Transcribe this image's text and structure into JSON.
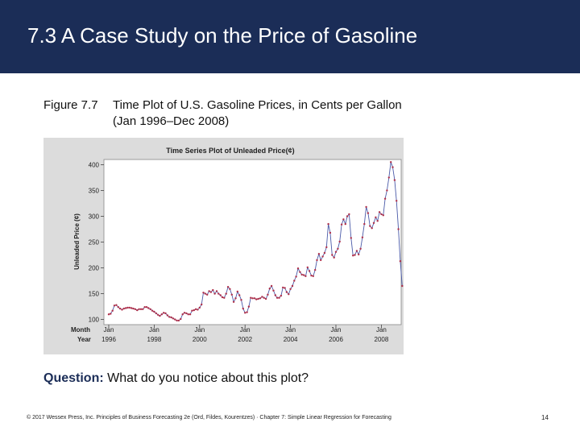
{
  "slide": {
    "title": "7.3 A Case Study on the Price of Gasoline",
    "caption_number": "Figure 7.7",
    "caption_line1": "Time Plot of U.S. Gasoline Prices, in Cents per Gallon",
    "caption_line2": "(Jan 1996–Dec 2008)",
    "question_label": "Question:",
    "question_text": " What do you notice about this plot?",
    "footer": "© 2017 Wessex Press, Inc. Principles of Business Forecasting 2e (Ord, Fildes, Kourentzes) · Chapter 7: Simple Linear Regression for Forecasting",
    "page_number": "14"
  },
  "colors": {
    "header_bg": "#1b2d57",
    "chart_bg": "#dcdcdc",
    "line": "#4a5aa8",
    "marker": "#b0304a"
  },
  "chart_data": {
    "type": "line",
    "title": "Time Series Plot of Unleaded Price(¢)",
    "ylabel": "Unleaded Price (¢)",
    "xlabel_row1": "Month",
    "xlabel_row2": "Year",
    "ylim": [
      90,
      410
    ],
    "yticks": [
      100,
      150,
      200,
      250,
      300,
      350,
      400
    ],
    "xticks": [
      {
        "month": "Jan",
        "year": "1996",
        "index": 0
      },
      {
        "month": "Jan",
        "year": "1998",
        "index": 24
      },
      {
        "month": "Jan",
        "year": "2000",
        "index": 48
      },
      {
        "month": "Jan",
        "year": "2002",
        "index": 72
      },
      {
        "month": "Jan",
        "year": "2004",
        "index": 96
      },
      {
        "month": "Jan",
        "year": "2006",
        "index": 120
      },
      {
        "month": "Jan",
        "year": "2008",
        "index": 144
      }
    ],
    "x_start": "Jan 1996",
    "x_end": "Dec 2008",
    "series": [
      {
        "name": "Unleaded Price",
        "values": [
          110,
          111,
          117,
          127,
          128,
          124,
          121,
          119,
          121,
          122,
          123,
          123,
          122,
          121,
          120,
          118,
          120,
          120,
          120,
          124,
          124,
          122,
          120,
          117,
          115,
          112,
          109,
          107,
          110,
          113,
          112,
          108,
          105,
          104,
          102,
          100,
          98,
          98,
          101,
          110,
          113,
          112,
          110,
          110,
          117,
          118,
          120,
          119,
          123,
          129,
          152,
          150,
          148,
          155,
          153,
          157,
          150,
          155,
          150,
          147,
          143,
          142,
          150,
          163,
          159,
          148,
          134,
          141,
          154,
          147,
          138,
          121,
          113,
          114,
          125,
          142,
          141,
          141,
          139,
          140,
          141,
          144,
          142,
          140,
          148,
          160,
          165,
          156,
          147,
          142,
          142,
          146,
          162,
          161,
          153,
          149,
          159,
          165,
          175,
          183,
          199,
          192,
          187,
          186,
          184,
          201,
          194,
          185,
          184,
          196,
          215,
          227,
          215,
          222,
          229,
          240,
          285,
          268,
          225,
          220,
          231,
          237,
          251,
          284,
          294,
          285,
          300,
          304,
          258,
          224,
          225,
          233,
          226,
          237,
          259,
          285,
          318,
          306,
          281,
          277,
          287,
          298,
          291,
          308,
          304,
          302,
          334,
          350,
          375,
          405,
          395,
          370,
          330,
          275,
          213,
          165
        ]
      }
    ]
  }
}
